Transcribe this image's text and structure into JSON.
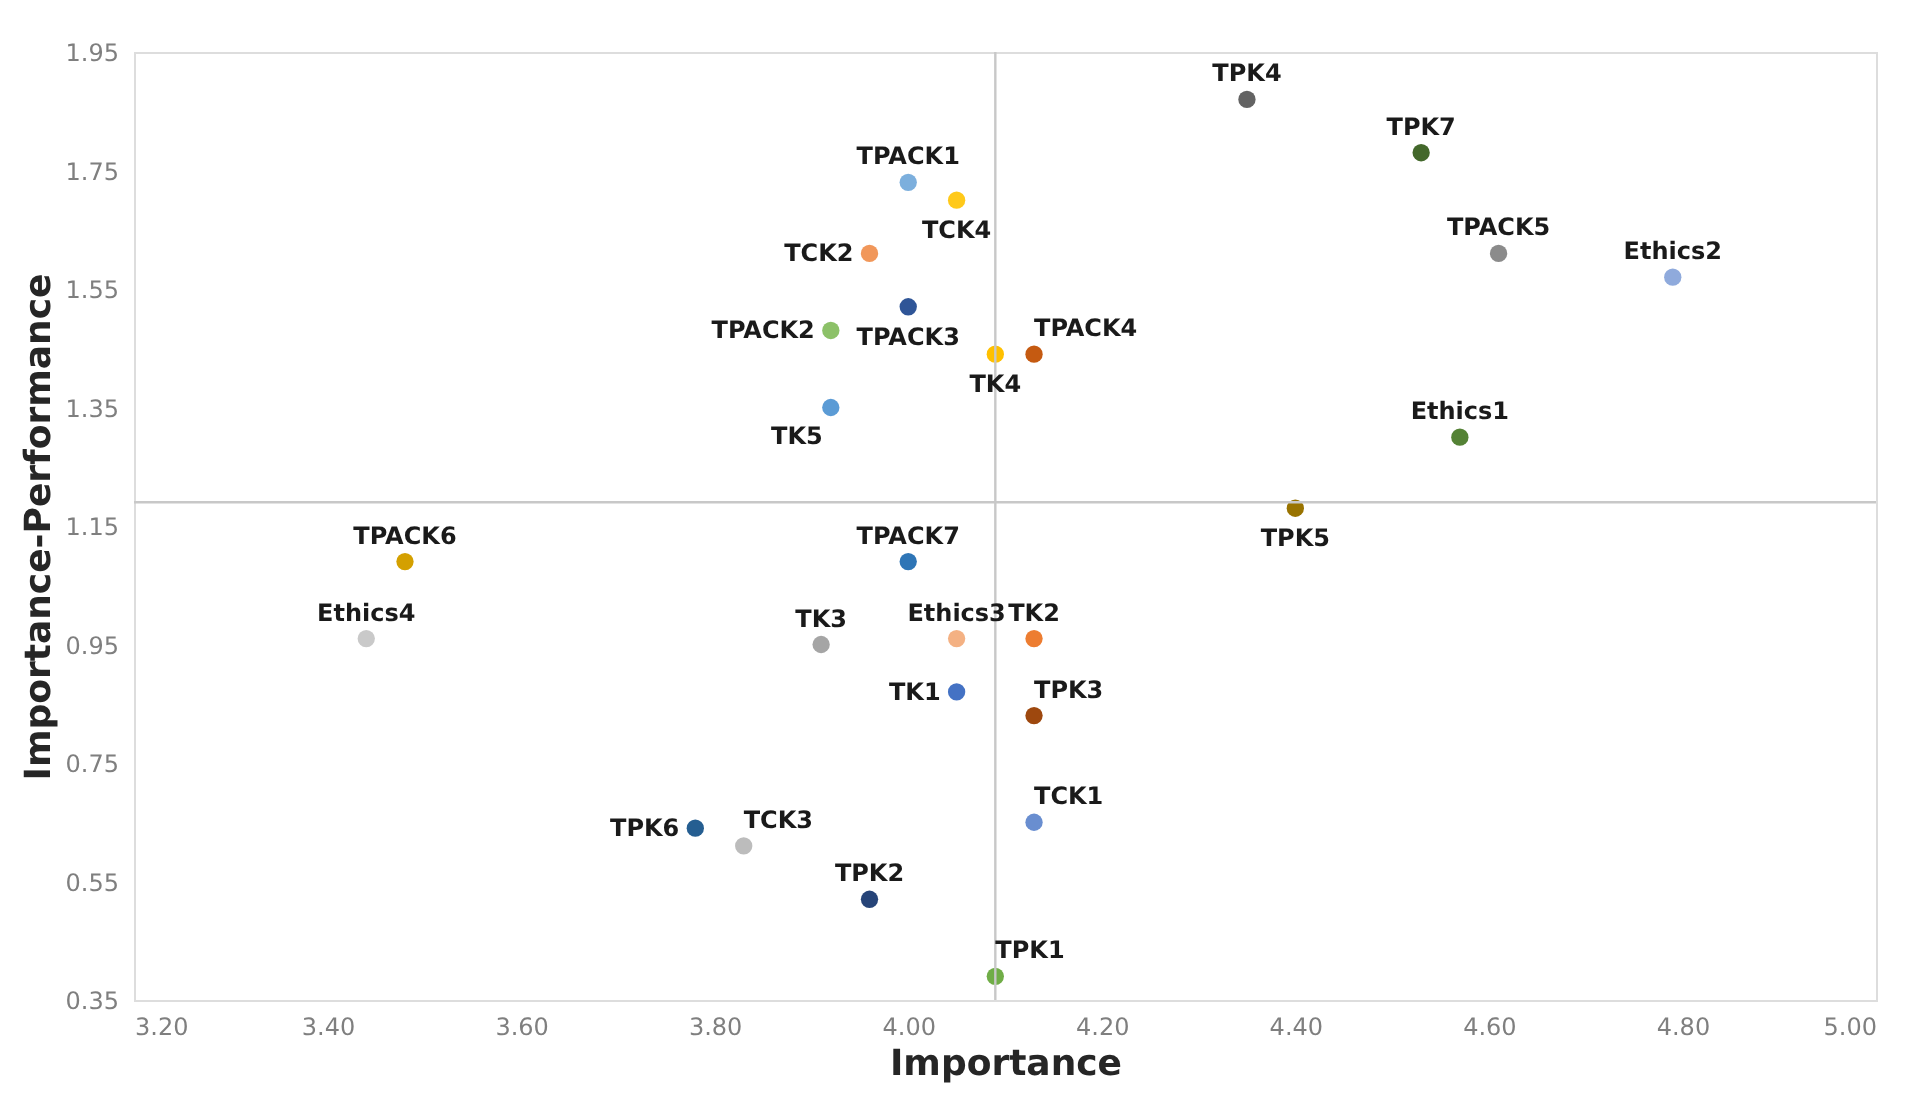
{
  "chart_data": {
    "type": "scatter",
    "xlabel": "Importance",
    "ylabel": "Importance-Performance",
    "xlim": [
      3.2,
      5.0
    ],
    "ylim": [
      0.35,
      1.95
    ],
    "xticks": [
      {
        "value": 3.2,
        "label": "3.20"
      },
      {
        "value": 3.4,
        "label": "3.40"
      },
      {
        "value": 3.6,
        "label": "3.60"
      },
      {
        "value": 3.8,
        "label": "3.80"
      },
      {
        "value": 4.0,
        "label": "4.00"
      },
      {
        "value": 4.2,
        "label": "4.20"
      },
      {
        "value": 4.4,
        "label": "4.40"
      },
      {
        "value": 4.6,
        "label": "4.60"
      },
      {
        "value": 4.8,
        "label": "4.80"
      },
      {
        "value": 5.0,
        "label": "5.00"
      }
    ],
    "yticks": [
      0.35,
      0.55,
      0.75,
      0.95,
      1.15,
      1.35,
      1.55,
      1.75,
      1.95
    ],
    "grid": false,
    "legend": false,
    "marker": "circle",
    "ref_lines": [
      {
        "axis": "x",
        "value": 4.09,
        "color": "#c8c8c8"
      },
      {
        "axis": "y",
        "value": 1.19,
        "color": "#c8c8c8"
      }
    ],
    "series": [
      {
        "name": "TPK4",
        "color": "#636363",
        "x": [
          4.35
        ],
        "values": [
          1.87
        ]
      },
      {
        "name": "TPK7",
        "color": "#43682b",
        "x": [
          4.53
        ],
        "values": [
          1.78
        ]
      },
      {
        "name": "TPACK1",
        "color": "#7cafdd",
        "x": [
          4.0
        ],
        "values": [
          1.73
        ]
      },
      {
        "name": "TCK4",
        "color": "#ffc91a",
        "x": [
          4.05
        ],
        "values": [
          1.7
        ]
      },
      {
        "name": "TCK2",
        "color": "#f1975a",
        "x": [
          3.96
        ],
        "values": [
          1.61
        ]
      },
      {
        "name": "TPACK5",
        "color": "#8b8b8b",
        "x": [
          4.61
        ],
        "values": [
          1.61
        ]
      },
      {
        "name": "Ethics2",
        "color": "#8faadc",
        "x": [
          4.79
        ],
        "values": [
          1.57
        ]
      },
      {
        "name": "TPACK3",
        "color": "#2f5597",
        "x": [
          4.0
        ],
        "values": [
          1.52
        ]
      },
      {
        "name": "TPACK2",
        "color": "#8cc168",
        "x": [
          3.92
        ],
        "values": [
          1.48
        ]
      },
      {
        "name": "TK4",
        "color": "#ffc000",
        "x": [
          4.09
        ],
        "values": [
          1.44
        ]
      },
      {
        "name": "TPACK4",
        "color": "#c55a11",
        "x": [
          4.13
        ],
        "values": [
          1.44
        ]
      },
      {
        "name": "TK5",
        "color": "#5b9bd5",
        "x": [
          3.92
        ],
        "values": [
          1.35
        ]
      },
      {
        "name": "Ethics1",
        "color": "#548235",
        "x": [
          4.57
        ],
        "values": [
          1.3
        ]
      },
      {
        "name": "TPK5",
        "color": "#997300",
        "x": [
          4.4
        ],
        "values": [
          1.18
        ]
      },
      {
        "name": "TPACK6",
        "color": "#d4a000",
        "x": [
          3.48
        ],
        "values": [
          1.09
        ]
      },
      {
        "name": "TPACK7",
        "color": "#2e75b6",
        "x": [
          4.0
        ],
        "values": [
          1.09
        ]
      },
      {
        "name": "Ethics4",
        "color": "#c9c9c9",
        "x": [
          3.44
        ],
        "values": [
          0.96
        ]
      },
      {
        "name": "TK3",
        "color": "#a5a5a5",
        "x": [
          3.91
        ],
        "values": [
          0.95
        ]
      },
      {
        "name": "Ethics3",
        "color": "#f4b183",
        "x": [
          4.05
        ],
        "values": [
          0.96
        ]
      },
      {
        "name": "TK2",
        "color": "#ed7d31",
        "x": [
          4.13
        ],
        "values": [
          0.96
        ]
      },
      {
        "name": "TK1",
        "color": "#4472c4",
        "x": [
          4.05
        ],
        "values": [
          0.87
        ]
      },
      {
        "name": "TPK3",
        "color": "#9e480e",
        "x": [
          4.13
        ],
        "values": [
          0.83
        ]
      },
      {
        "name": "TCK1",
        "color": "#698ed0",
        "x": [
          4.13
        ],
        "values": [
          0.65
        ]
      },
      {
        "name": "TPK6",
        "color": "#255e91",
        "x": [
          3.78
        ],
        "values": [
          0.64
        ]
      },
      {
        "name": "TCK3",
        "color": "#bcbcbc",
        "x": [
          3.83
        ],
        "values": [
          0.61
        ]
      },
      {
        "name": "TPK2",
        "color": "#264478",
        "x": [
          3.96
        ],
        "values": [
          0.52
        ]
      },
      {
        "name": "TPK1",
        "color": "#70ad47",
        "x": [
          4.09
        ],
        "values": [
          0.39
        ]
      }
    ]
  }
}
